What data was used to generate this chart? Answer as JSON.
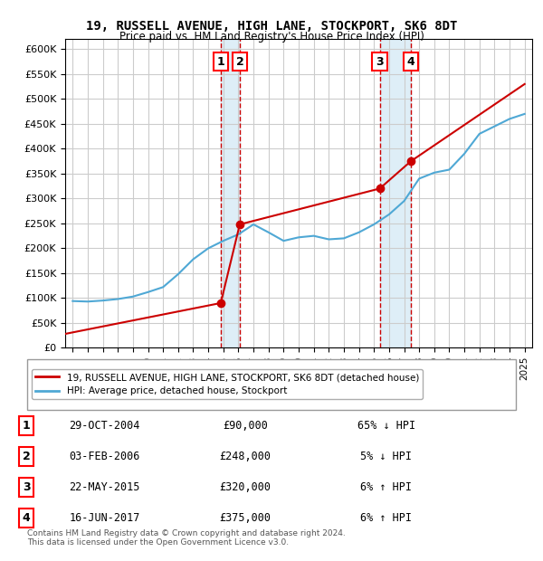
{
  "title": "19, RUSSELL AVENUE, HIGH LANE, STOCKPORT, SK6 8DT",
  "subtitle": "Price paid vs. HM Land Registry's House Price Index (HPI)",
  "footer": "Contains HM Land Registry data © Crown copyright and database right 2024.\nThis data is licensed under the Open Government Licence v3.0.",
  "legend_house": "19, RUSSELL AVENUE, HIGH LANE, STOCKPORT, SK6 8DT (detached house)",
  "legend_hpi": "HPI: Average price, detached house, Stockport",
  "transactions": [
    {
      "num": 1,
      "date": "29-OCT-2004",
      "price": 90000,
      "pct": "65% ↓ HPI",
      "x": 2004.83
    },
    {
      "num": 2,
      "date": "03-FEB-2006",
      "price": 248000,
      "pct": "5% ↓ HPI",
      "x": 2006.09
    },
    {
      "num": 3,
      "date": "22-MAY-2015",
      "price": 320000,
      "pct": "6% ↑ HPI",
      "x": 2015.38
    },
    {
      "num": 4,
      "date": "16-JUN-2017",
      "price": 375000,
      "pct": "6% ↑ HPI",
      "x": 2017.45
    }
  ],
  "ylim": [
    0,
    620000
  ],
  "xlim": [
    1994.5,
    2025.5
  ],
  "hpi_color": "#4fa8d5",
  "house_color": "#cc0000",
  "transaction_color": "#cc0000",
  "shade_color": "#d0e8f5",
  "grid_color": "#cccccc",
  "years": [
    1995,
    1996,
    1997,
    1998,
    1999,
    2000,
    2001,
    2002,
    2003,
    2004,
    2005,
    2006,
    2007,
    2008,
    2009,
    2010,
    2011,
    2012,
    2013,
    2014,
    2015,
    2016,
    2017,
    2018,
    2019,
    2020,
    2021,
    2022,
    2023,
    2024,
    2025
  ],
  "hpi_values": [
    94000,
    93000,
    95000,
    98000,
    103000,
    112000,
    122000,
    148000,
    178000,
    200000,
    215000,
    228000,
    248000,
    232000,
    215000,
    222000,
    225000,
    218000,
    220000,
    232000,
    248000,
    268000,
    295000,
    340000,
    352000,
    358000,
    390000,
    430000,
    445000,
    460000,
    470000
  ],
  "house_values_x": [
    1994.5,
    2004.83,
    2006.09,
    2015.38,
    2017.45,
    2025.0
  ],
  "house_values_y": [
    28000,
    90000,
    248000,
    320000,
    375000,
    530000
  ]
}
